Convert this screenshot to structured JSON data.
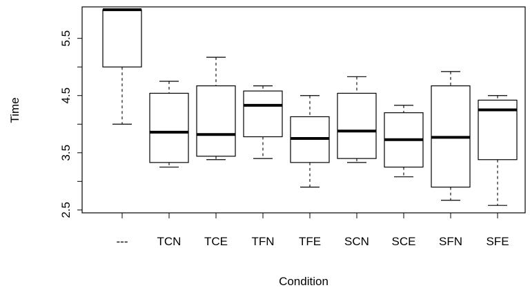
{
  "chart_data": {
    "type": "boxplot",
    "xlabel": "Condition",
    "ylabel": "Time",
    "ylim": [
      2.45,
      6.05
    ],
    "yticks": [
      2.5,
      3.0,
      3.5,
      4.0,
      4.5,
      5.0,
      5.5
    ],
    "ytick_labels": [
      "2.5",
      "",
      "3.5",
      "",
      "4.5",
      "",
      "5.5"
    ],
    "categories": [
      "---",
      "TCN",
      "TCE",
      "TFN",
      "TFE",
      "SCN",
      "SCE",
      "SFN",
      "SFE"
    ],
    "boxes": [
      {
        "min": 4.0,
        "q1": 5.0,
        "median": 6.0,
        "q3": 6.0,
        "max": 6.0
      },
      {
        "min": 3.25,
        "q1": 3.33,
        "median": 3.86,
        "q3": 4.54,
        "max": 4.75
      },
      {
        "min": 3.38,
        "q1": 3.44,
        "median": 3.82,
        "q3": 4.67,
        "max": 5.17
      },
      {
        "min": 3.4,
        "q1": 3.78,
        "median": 4.33,
        "q3": 4.58,
        "max": 4.67
      },
      {
        "min": 2.9,
        "q1": 3.33,
        "median": 3.75,
        "q3": 4.13,
        "max": 4.5
      },
      {
        "min": 3.33,
        "q1": 3.4,
        "median": 3.88,
        "q3": 4.54,
        "max": 4.83
      },
      {
        "min": 3.08,
        "q1": 3.25,
        "median": 3.73,
        "q3": 4.2,
        "max": 4.33
      },
      {
        "min": 2.67,
        "q1": 2.9,
        "median": 3.77,
        "q3": 4.67,
        "max": 4.92
      },
      {
        "min": 2.58,
        "q1": 3.38,
        "median": 4.25,
        "q3": 4.42,
        "max": 4.5
      }
    ]
  }
}
